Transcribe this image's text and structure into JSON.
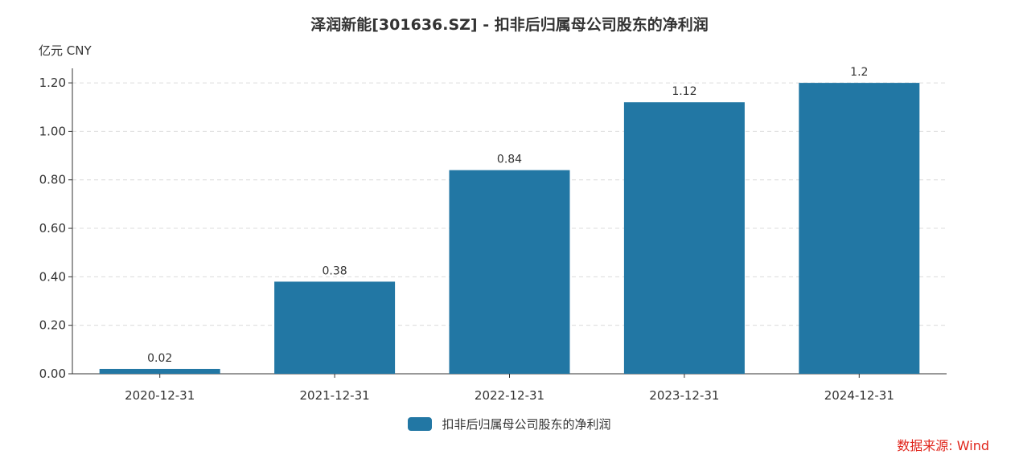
{
  "chart_data": {
    "type": "bar",
    "title": "泽润新能[301636.SZ] - 扣非后归属母公司股东的净利润",
    "unit": "亿元  CNY",
    "categories": [
      "2020-12-31",
      "2021-12-31",
      "2022-12-31",
      "2023-12-31",
      "2024-12-31"
    ],
    "series": [
      {
        "name": "扣非后归属母公司股东的净利润",
        "values": [
          0.02,
          0.38,
          0.84,
          1.12,
          1.2
        ],
        "labels": [
          "0.02",
          "0.38",
          "0.84",
          "1.12",
          "1.2"
        ]
      }
    ],
    "yticks": [
      "0.00",
      "0.20",
      "0.40",
      "0.60",
      "0.80",
      "1.00",
      "1.20"
    ],
    "ylim": [
      0,
      1.26
    ],
    "grid": true,
    "legend_position": "bottom-center",
    "colors": {
      "bar": "#2277a4",
      "source": "#e0251b"
    },
    "source": "数据来源: Wind"
  }
}
